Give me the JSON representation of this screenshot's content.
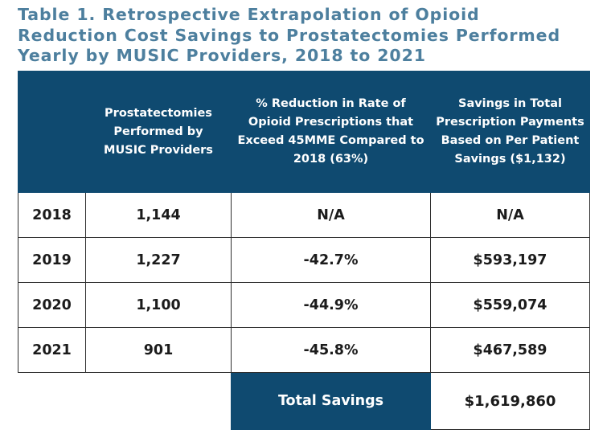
{
  "title": {
    "line1": "Table 1. Retrospective Extrapolation of Opioid",
    "line2": "Reduction Cost Savings to Prostatectomies Performed",
    "line3": "Yearly by MUSIC Providers, 2018 to 2021"
  },
  "table": {
    "headers": [
      "",
      "Prostatectomies Performed by MUSIC Providers",
      "% Reduction in Rate of Opioid Prescriptions that Exceed 45MME Compared to 2018 (63%)",
      "Savings in Total Prescription Payments Based on Per Patient Savings ($1,132)"
    ],
    "rows": [
      {
        "year": "2018",
        "prostatectomies": "1,144",
        "reduction": "N/A",
        "savings": "N/A"
      },
      {
        "year": "2019",
        "prostatectomies": "1,227",
        "reduction": "-42.7%",
        "savings": "$593,197"
      },
      {
        "year": "2020",
        "prostatectomies": "1,100",
        "reduction": "-44.9%",
        "savings": "$559,074"
      },
      {
        "year": "2021",
        "prostatectomies": "901",
        "reduction": "-45.8%",
        "savings": "$467,589"
      }
    ],
    "total_label": "Total Savings",
    "total_value": "$1,619,860"
  },
  "colors": {
    "title": "#4d7f9e",
    "header_bg": "#0f4a70",
    "header_text": "#ffffff",
    "body_text": "#1b1b1b",
    "border": "#2e2e2e"
  }
}
